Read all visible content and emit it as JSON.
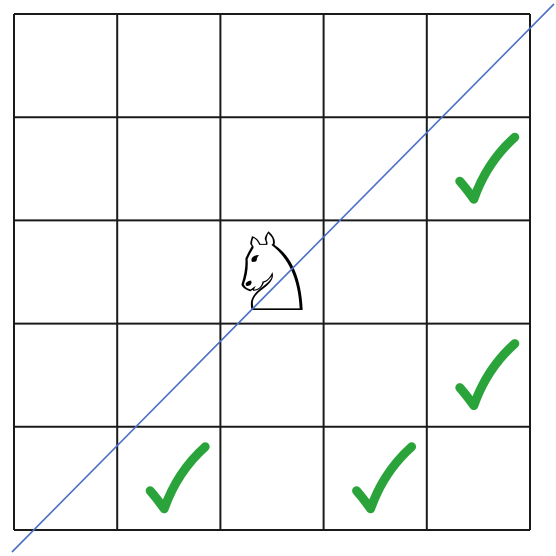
{
  "board": {
    "rows": 5,
    "cols": 5,
    "background_color": "#ffffff",
    "grid_color": "#1a1a1a",
    "knight": {
      "row": 2,
      "col": 2,
      "piece": "white-knight",
      "glyph": "♘",
      "icon": "knight-icon"
    },
    "check_color": "#2aa43a",
    "checkmarks": [
      {
        "row": 1,
        "col": 4,
        "icon": "checkmark-icon"
      },
      {
        "row": 3,
        "col": 4,
        "icon": "checkmark-icon"
      },
      {
        "row": 4,
        "col": 1,
        "icon": "checkmark-icon"
      },
      {
        "row": 4,
        "col": 3,
        "icon": "checkmark-icon"
      }
    ],
    "diagonal": {
      "color": "#4a6fc4",
      "from": "bottom-left",
      "to": "top-right"
    }
  }
}
